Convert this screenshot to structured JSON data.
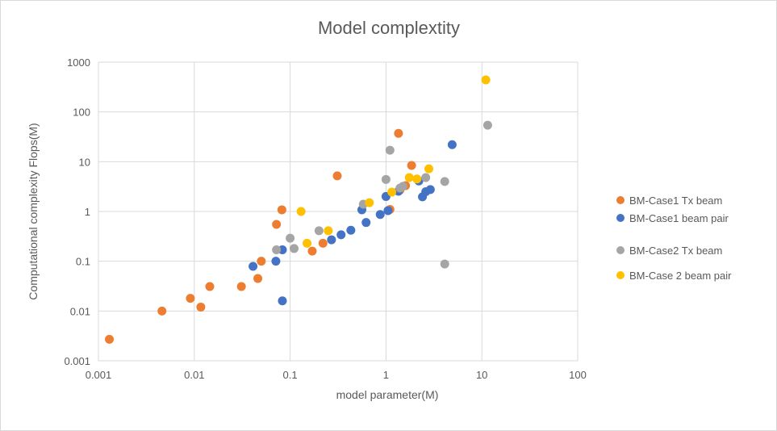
{
  "chart_data": {
    "type": "scatter",
    "title": "Model complextity",
    "xlabel": "model parameter(M)",
    "ylabel": "Computational complexity Flops(M)",
    "xscale": "log",
    "yscale": "log",
    "xlim": [
      0.001,
      100
    ],
    "ylim": [
      0.001,
      1000
    ],
    "xticks": [
      "0.001",
      "0.01",
      "0.1",
      "1",
      "10",
      "100"
    ],
    "yticks": [
      "0.001",
      "0.01",
      "0.1",
      "1",
      "10",
      "100",
      "1000"
    ],
    "grid": true,
    "legend_position": "right",
    "series": [
      {
        "name": "BM-Case1 Tx beam",
        "color": "#ed7d31",
        "points": [
          [
            0.0013,
            0.0027
          ],
          [
            0.0046,
            0.01
          ],
          [
            0.0091,
            0.018
          ],
          [
            0.0117,
            0.012
          ],
          [
            0.0145,
            0.031
          ],
          [
            0.031,
            0.031
          ],
          [
            0.046,
            0.045
          ],
          [
            0.05,
            0.1
          ],
          [
            0.072,
            0.55
          ],
          [
            0.082,
            1.08
          ],
          [
            0.17,
            0.16
          ],
          [
            0.22,
            0.23
          ],
          [
            0.31,
            5.2
          ],
          [
            1.1,
            1.1
          ],
          [
            1.35,
            37
          ],
          [
            1.6,
            3.3
          ],
          [
            1.85,
            8.4
          ],
          [
            1.4,
            2.7
          ]
        ]
      },
      {
        "name": "BM-Case1 beam pair",
        "color": "#4472c4",
        "points": [
          [
            0.041,
            0.079
          ],
          [
            0.071,
            0.1
          ],
          [
            0.083,
            0.17
          ],
          [
            0.083,
            0.016
          ],
          [
            0.27,
            0.27
          ],
          [
            0.34,
            0.34
          ],
          [
            0.43,
            0.42
          ],
          [
            0.56,
            1.08
          ],
          [
            0.62,
            0.6
          ],
          [
            0.87,
            0.87
          ],
          [
            1.05,
            1.04
          ],
          [
            1.0,
            2.0
          ],
          [
            1.35,
            2.55
          ],
          [
            2.2,
            4.1
          ],
          [
            2.4,
            1.97
          ],
          [
            2.6,
            2.5
          ],
          [
            2.9,
            2.75
          ],
          [
            4.9,
            22
          ]
        ]
      },
      {
        "name": "BM-Case2 Tx beam",
        "color": "#a5a5a5",
        "points": [
          [
            0.072,
            0.17
          ],
          [
            0.1,
            0.29
          ],
          [
            0.11,
            0.18
          ],
          [
            0.2,
            0.41
          ],
          [
            0.58,
            1.4
          ],
          [
            1.0,
            4.4
          ],
          [
            1.1,
            17
          ],
          [
            1.4,
            2.95
          ],
          [
            1.5,
            3.2
          ],
          [
            2.6,
            4.8
          ],
          [
            4.1,
            4.0
          ],
          [
            4.1,
            0.088
          ],
          [
            11.5,
            54
          ]
        ]
      },
      {
        "name": "BM-Case 2 beam pair",
        "color": "#ffc000",
        "points": [
          [
            0.13,
            1.0
          ],
          [
            0.15,
            0.23
          ],
          [
            0.25,
            0.41
          ],
          [
            0.67,
            1.5
          ],
          [
            1.15,
            2.45
          ],
          [
            1.75,
            4.8
          ],
          [
            2.1,
            4.5
          ],
          [
            2.8,
            7.2
          ],
          [
            11,
            440
          ]
        ]
      }
    ]
  }
}
